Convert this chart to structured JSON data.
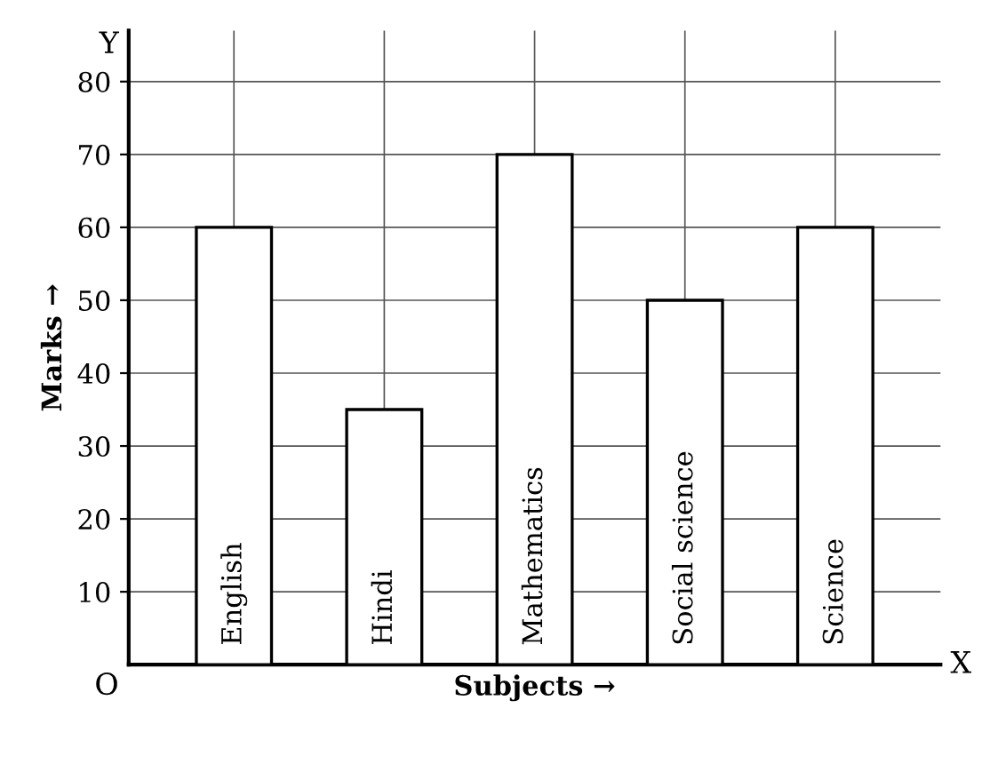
{
  "chart_data": {
    "type": "bar",
    "xlabel": "Subjects →",
    "ylabel": "Marks →",
    "categories": [
      "English",
      "Hindi",
      "Mathematics",
      "Social science",
      "Science"
    ],
    "values": [
      60,
      35,
      70,
      50,
      60
    ],
    "color": "#ffffff",
    "ylim": [
      0,
      87
    ],
    "yticks": [
      10,
      20,
      30,
      40,
      50,
      60,
      70,
      80
    ],
    "grid": true,
    "tick_labels": "y",
    "annotations": [
      "Y",
      "X",
      "O"
    ]
  }
}
